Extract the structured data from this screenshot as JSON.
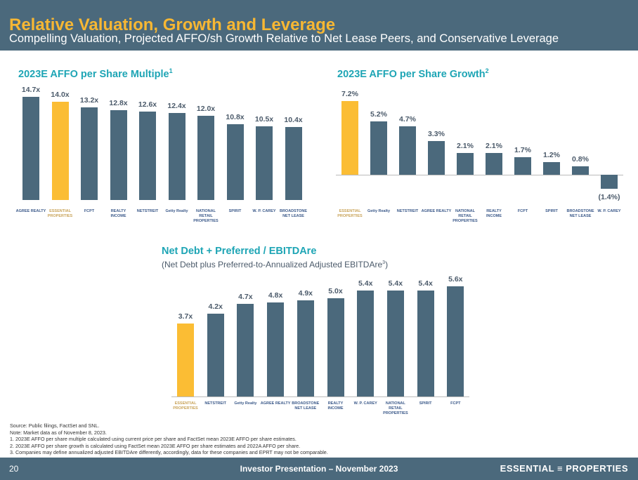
{
  "header": {
    "title": "Relative Valuation, Growth and Leverage",
    "subtitle": "Compelling Valuation, Projected AFFO/sh Growth Relative to Net Lease Peers, and Conservative Leverage"
  },
  "colors": {
    "bar": "#4b697c",
    "highlight": "#fbbd34",
    "title": "#f7b733",
    "chart_title": "#1ea5b5"
  },
  "chart_data": [
    {
      "type": "bar",
      "title": "2023E AFFO per Share Multiple",
      "title_sup": "1",
      "categories": [
        "Agree Realty",
        "Essential Properties",
        "FCPT",
        "Realty Income",
        "NETSTREIT",
        "Getty Realty",
        "National Retail Properties",
        "Spirit",
        "W. P. Carey",
        "Broadstone Net Lease"
      ],
      "values": [
        14.7,
        14.0,
        13.2,
        12.8,
        12.6,
        12.4,
        12.0,
        10.8,
        10.5,
        10.4
      ],
      "labels": [
        "14.7x",
        "14.0x",
        "13.2x",
        "12.8x",
        "12.6x",
        "12.4x",
        "12.0x",
        "10.8x",
        "10.5x",
        "10.4x"
      ],
      "highlight": "Essential Properties"
    },
    {
      "type": "bar",
      "title": "2023E AFFO per Share Growth",
      "title_sup": "2",
      "categories": [
        "Essential Properties",
        "Getty Realty",
        "NETSTREIT",
        "Agree Realty",
        "National Retail Properties",
        "Realty Income",
        "FCPT",
        "Spirit",
        "Broadstone Net Lease",
        "W. P. Carey"
      ],
      "values": [
        7.2,
        5.2,
        4.7,
        3.3,
        2.1,
        2.1,
        1.7,
        1.2,
        0.8,
        -1.4
      ],
      "labels": [
        "7.2%",
        "5.2%",
        "4.7%",
        "3.3%",
        "2.1%",
        "2.1%",
        "1.7%",
        "1.2%",
        "0.8%",
        "(1.4%)"
      ],
      "highlight": "Essential Properties"
    },
    {
      "type": "bar",
      "title": "Net Debt + Preferred / EBITDAre",
      "subtitle": "(Net Debt plus Preferred-to-Annualized Adjusted EBITDAre",
      "subtitle_sup": "3",
      "subtitle_end": ")",
      "categories": [
        "Essential Properties",
        "NETSTREIT",
        "Getty Realty",
        "Agree Realty",
        "Broadstone Net Lease",
        "Realty Income",
        "W. P. Carey",
        "National Retail Properties",
        "Spirit",
        "FCPT"
      ],
      "values": [
        3.7,
        4.2,
        4.7,
        4.8,
        4.9,
        5.0,
        5.4,
        5.4,
        5.4,
        5.6
      ],
      "labels": [
        "3.7x",
        "4.2x",
        "4.7x",
        "4.8x",
        "4.9x",
        "5.0x",
        "5.4x",
        "5.4x",
        "5.4x",
        "5.6x"
      ],
      "highlight": "Essential Properties"
    }
  ],
  "logos": {
    "Agree Realty": "AGREE REALTY",
    "Essential Properties": "ESSENTIAL PROPERTIES",
    "FCPT": "FCPT",
    "Realty Income": "REALTY INCOME",
    "NETSTREIT": "NETSTREIT",
    "Getty Realty": "Getty Realty",
    "National Retail Properties": "NATIONAL RETAIL PROPERTIES",
    "Spirit": "SPIRIT",
    "W. P. Carey": "W. P. CAREY",
    "Broadstone Net Lease": "BROADSTONE NET LEASE"
  },
  "notes": [
    "Source: Public filings, FactSet and SNL.",
    "Note: Market data as of November 8, 2023.",
    "1.  2023E AFFO per share multiple calculated using current price per share and FactSet mean 2023E AFFO per share estimates.",
    "2.  2023E AFFO per share growth is calculated using FactSet mean 2023E AFFO per share estimates and 2022A AFFO per share.",
    "3.  Companies may define annualized adjusted EBITDAre differently, accordingly, data for these companies and EPRT may not be comparable."
  ],
  "footer": {
    "page": "20",
    "text": "Investor Presentation – November 2023",
    "brand": "ESSENTIAL ≡ PROPERTIES"
  }
}
